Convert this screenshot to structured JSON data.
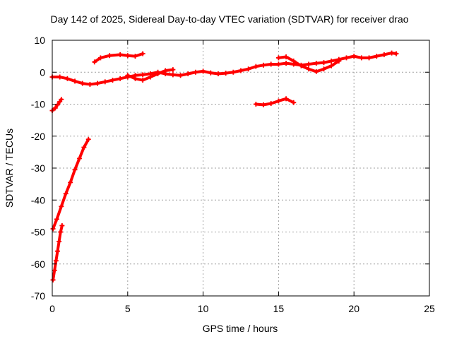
{
  "chart_data": {
    "type": "scatter",
    "title": "Day 142 of 2025, Sidereal Day-to-day VTEC variation (SDTVAR) for receiver drao",
    "xlabel": "GPS time / hours",
    "ylabel": "SDTVAR / TECUs",
    "xlim": [
      0,
      25
    ],
    "ylim": [
      -70,
      10
    ],
    "xticks": [
      0,
      5,
      10,
      15,
      20,
      25
    ],
    "yticks": [
      -70,
      -60,
      -50,
      -40,
      -30,
      -20,
      -10,
      0,
      10
    ],
    "grid": true,
    "marker": "plus",
    "color": "#ff0000",
    "series": [
      {
        "values": [
          [
            0.0,
            -12
          ],
          [
            0.2,
            -11.2
          ],
          [
            0.35,
            -10.2
          ],
          [
            0.5,
            -9.2
          ],
          [
            0.6,
            -8.5
          ]
        ]
      },
      {
        "values": [
          [
            0.05,
            -49
          ],
          [
            0.3,
            -46
          ],
          [
            0.6,
            -42
          ],
          [
            0.9,
            -38
          ],
          [
            1.2,
            -34.5
          ],
          [
            1.5,
            -30.5
          ],
          [
            1.8,
            -27
          ],
          [
            2.1,
            -23.5
          ],
          [
            2.4,
            -21
          ]
        ]
      },
      {
        "values": [
          [
            0.05,
            -65
          ],
          [
            0.15,
            -62
          ],
          [
            0.25,
            -59
          ],
          [
            0.35,
            -56
          ],
          [
            0.45,
            -53
          ],
          [
            0.55,
            -50
          ],
          [
            0.65,
            -48
          ]
        ]
      },
      {
        "values": [
          [
            0.0,
            -1.5
          ],
          [
            0.5,
            -1.5
          ],
          [
            1.0,
            -2.0
          ],
          [
            1.5,
            -2.8
          ],
          [
            2.0,
            -3.5
          ],
          [
            2.5,
            -3.8
          ],
          [
            3.0,
            -3.5
          ],
          [
            3.5,
            -3.0
          ],
          [
            4.0,
            -2.5
          ],
          [
            4.5,
            -2.0
          ],
          [
            5.0,
            -1.5
          ],
          [
            5.5,
            -1.0
          ],
          [
            6.0,
            -0.8
          ],
          [
            6.5,
            -0.5
          ],
          [
            7.0,
            0.0
          ],
          [
            7.5,
            -0.5
          ],
          [
            8.0,
            -0.8
          ],
          [
            8.5,
            -1.0
          ],
          [
            9.0,
            -0.5
          ],
          [
            9.5,
            0.0
          ],
          [
            10.0,
            0.3
          ],
          [
            10.5,
            -0.2
          ],
          [
            11.0,
            -0.5
          ],
          [
            11.5,
            -0.3
          ],
          [
            12.0,
            0.0
          ],
          [
            12.5,
            0.5
          ],
          [
            13.0,
            1.0
          ],
          [
            13.5,
            1.8
          ],
          [
            14.0,
            2.2
          ],
          [
            14.5,
            2.5
          ],
          [
            15.0,
            2.5
          ],
          [
            15.5,
            2.8
          ],
          [
            16.0,
            2.5
          ],
          [
            16.5,
            2.2
          ],
          [
            17.0,
            2.5
          ],
          [
            17.5,
            2.8
          ],
          [
            18.0,
            3.0
          ],
          [
            18.5,
            3.5
          ],
          [
            19.0,
            4.0
          ],
          [
            19.5,
            4.5
          ],
          [
            20.0,
            5.0
          ],
          [
            20.5,
            4.5
          ],
          [
            21.0,
            4.5
          ],
          [
            21.5,
            5.0
          ],
          [
            22.0,
            5.5
          ],
          [
            22.5,
            6.0
          ],
          [
            22.8,
            5.8
          ]
        ]
      },
      {
        "values": [
          [
            2.8,
            3.2
          ],
          [
            3.2,
            4.5
          ],
          [
            3.8,
            5.2
          ],
          [
            4.5,
            5.5
          ],
          [
            5.0,
            5.2
          ],
          [
            5.5,
            5.0
          ],
          [
            6.0,
            5.8
          ]
        ]
      },
      {
        "values": [
          [
            5.0,
            -1.0
          ],
          [
            5.5,
            -2.0
          ],
          [
            6.0,
            -2.5
          ],
          [
            6.5,
            -1.5
          ],
          [
            7.0,
            -0.5
          ],
          [
            7.5,
            0.5
          ],
          [
            8.0,
            0.8
          ]
        ]
      },
      {
        "values": [
          [
            15.0,
            4.5
          ],
          [
            15.5,
            4.8
          ],
          [
            16.0,
            3.5
          ],
          [
            16.5,
            2.0
          ],
          [
            17.0,
            1.0
          ],
          [
            17.5,
            0.2
          ],
          [
            18.0,
            1.0
          ],
          [
            18.5,
            2.0
          ],
          [
            19.0,
            3.5
          ]
        ]
      },
      {
        "values": [
          [
            13.5,
            -10
          ],
          [
            14.0,
            -10.2
          ],
          [
            14.5,
            -9.8
          ],
          [
            15.0,
            -9.0
          ],
          [
            15.5,
            -8.3
          ],
          [
            16.0,
            -9.5
          ]
        ]
      }
    ]
  }
}
